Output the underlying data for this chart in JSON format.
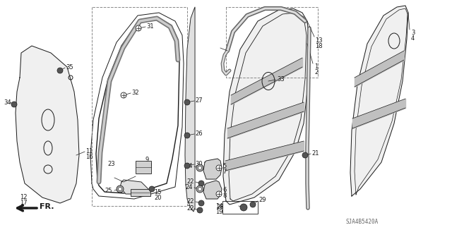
{
  "bg_color": "#ffffff",
  "part_code": "SJA4B5420A",
  "dark": "#1a1a1a",
  "gray": "#888888",
  "light_gray": "#cccccc",
  "fill_color": "#f5f5f5"
}
